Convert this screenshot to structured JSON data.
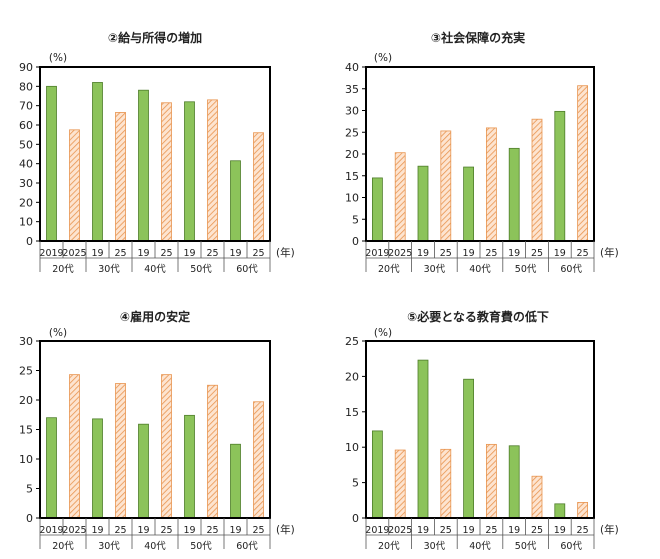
{
  "colors": {
    "green_fill": "#8cc35a",
    "green_stroke": "#4e7d2a",
    "orange_hatch": "#e8944f",
    "orange_bg": "#fde4d0",
    "axis": "#000000"
  },
  "chart_data": [
    {
      "type": "bar",
      "title": "②給与所得の増加",
      "ylabel": "(%)",
      "xunit": "(年)",
      "ylim": [
        0,
        90
      ],
      "yticks": [
        0,
        10,
        20,
        30,
        40,
        50,
        60,
        70,
        80,
        90
      ],
      "groups": [
        "20代",
        "30代",
        "40代",
        "50代",
        "60代"
      ],
      "year_labels": [
        [
          "2019",
          "2025"
        ],
        [
          "19",
          "25"
        ],
        [
          "19",
          "25"
        ],
        [
          "19",
          "25"
        ],
        [
          "19",
          "25"
        ]
      ],
      "series": [
        {
          "values": [
            80,
            82,
            78,
            72,
            41.5
          ],
          "style": "solid-green"
        },
        {
          "values": [
            57.5,
            66.5,
            71.5,
            73,
            56
          ],
          "style": "hatched-orange"
        }
      ]
    },
    {
      "type": "bar",
      "title": "③社会保障の充実",
      "ylabel": "(%)",
      "xunit": "(年)",
      "ylim": [
        0,
        40
      ],
      "yticks": [
        0,
        5,
        10,
        15,
        20,
        25,
        30,
        35,
        40
      ],
      "groups": [
        "20代",
        "30代",
        "40代",
        "50代",
        "60代"
      ],
      "year_labels": [
        [
          "2019",
          "2025"
        ],
        [
          "19",
          "25"
        ],
        [
          "19",
          "25"
        ],
        [
          "19",
          "25"
        ],
        [
          "19",
          "25"
        ]
      ],
      "series": [
        {
          "values": [
            14.5,
            17.2,
            17,
            21.3,
            29.8
          ],
          "style": "solid-green"
        },
        {
          "values": [
            20.3,
            25.3,
            26,
            28,
            35.7
          ],
          "style": "hatched-orange"
        }
      ]
    },
    {
      "type": "bar",
      "title": "④雇用の安定",
      "ylabel": "(%)",
      "xunit": "(年)",
      "ylim": [
        0,
        30
      ],
      "yticks": [
        0,
        5,
        10,
        15,
        20,
        25,
        30
      ],
      "groups": [
        "20代",
        "30代",
        "40代",
        "50代",
        "60代"
      ],
      "year_labels": [
        [
          "2019",
          "2025"
        ],
        [
          "19",
          "25"
        ],
        [
          "19",
          "25"
        ],
        [
          "19",
          "25"
        ],
        [
          "19",
          "25"
        ]
      ],
      "series": [
        {
          "values": [
            17,
            16.8,
            15.9,
            17.4,
            12.5
          ],
          "style": "solid-green"
        },
        {
          "values": [
            24.3,
            22.8,
            24.3,
            22.5,
            19.7
          ],
          "style": "hatched-orange"
        }
      ]
    },
    {
      "type": "bar",
      "title": "⑤必要となる教育費の低下",
      "ylabel": "(%)",
      "xunit": "(年)",
      "ylim": [
        0,
        25
      ],
      "yticks": [
        0,
        5,
        10,
        15,
        20,
        25
      ],
      "groups": [
        "20代",
        "30代",
        "40代",
        "50代",
        "60代"
      ],
      "year_labels": [
        [
          "2019",
          "2025"
        ],
        [
          "19",
          "25"
        ],
        [
          "19",
          "25"
        ],
        [
          "19",
          "25"
        ],
        [
          "19",
          "25"
        ]
      ],
      "series": [
        {
          "values": [
            12.3,
            22.3,
            19.6,
            10.2,
            2
          ],
          "style": "solid-green"
        },
        {
          "values": [
            9.6,
            9.7,
            10.4,
            5.9,
            2.2
          ],
          "style": "hatched-orange"
        }
      ]
    }
  ]
}
